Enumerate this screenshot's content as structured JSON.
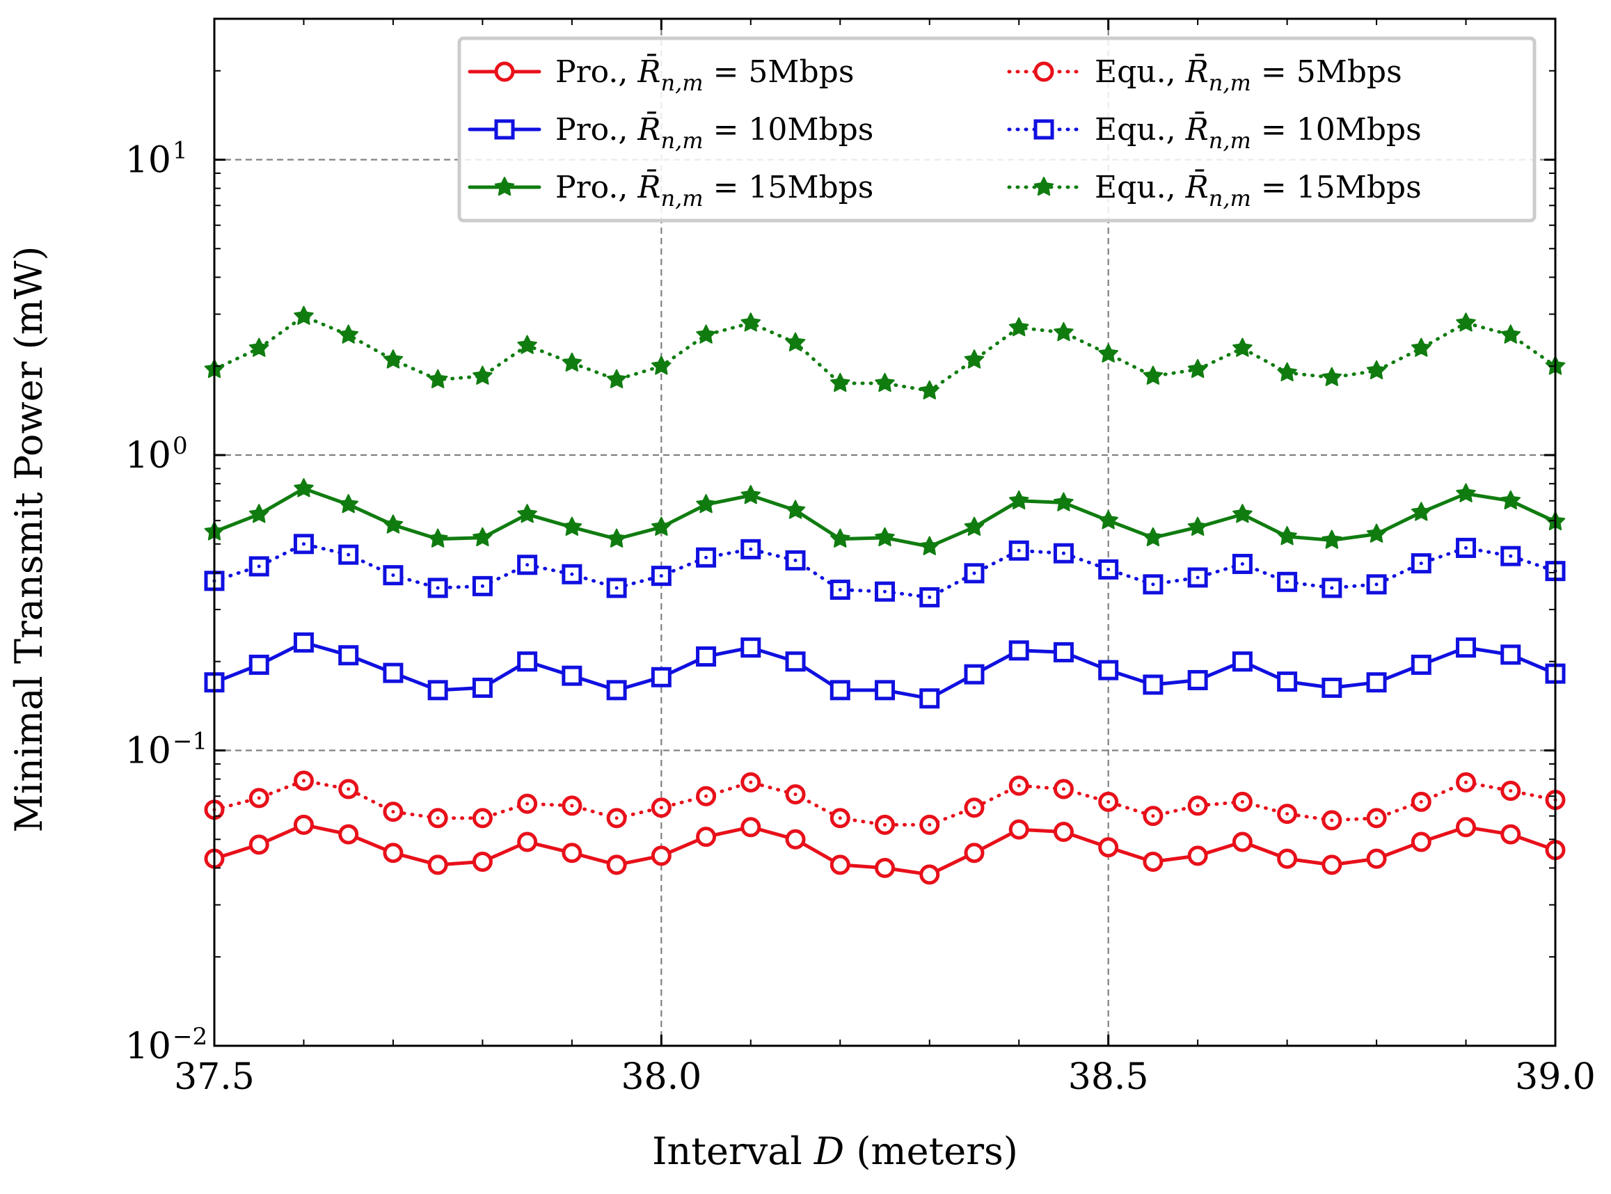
{
  "chart_data": {
    "type": "line",
    "title": "",
    "xlabel_prefix": "Interval ",
    "xlabel_var": "D",
    "xlabel_suffix": " (meters)",
    "ylabel": "Minimal Transmit Power (mW)",
    "yscale": "log",
    "xlim": [
      37.5,
      39.0
    ],
    "ylim": [
      0.01,
      30
    ],
    "grid": true,
    "legend_location": "top-right",
    "x_ticks": [
      37.5,
      38.0,
      38.5,
      39.0
    ],
    "x_tick_labels": [
      "37.5",
      "38.0",
      "38.5",
      "39.0"
    ],
    "y_ticks": [
      {
        "value": 10,
        "base": "10",
        "exp": "1"
      },
      {
        "value": 1,
        "base": "10",
        "exp": "0"
      },
      {
        "value": 0.1,
        "base": "10",
        "exp": "−1"
      },
      {
        "value": 0.01,
        "base": "10",
        "exp": "−2"
      }
    ],
    "x": [
      37.5,
      37.55,
      37.6,
      37.65,
      37.7,
      37.75,
      37.8,
      37.85,
      37.9,
      37.95,
      38.0,
      38.05,
      38.1,
      38.15,
      38.2,
      38.25,
      38.3,
      38.35,
      38.4,
      38.45,
      38.5,
      38.55,
      38.6,
      38.65,
      38.7,
      38.75,
      38.8,
      38.85,
      38.9,
      38.95,
      39.0
    ],
    "series": [
      {
        "name": "Pro., R̄n,m = 5Mbps",
        "label_scheme": "Pro.,",
        "label_rate": "5Mbps",
        "color": "#e8101a",
        "linestyle": "solid",
        "marker": "circle",
        "values": [
          0.043,
          0.048,
          0.056,
          0.052,
          0.045,
          0.041,
          0.042,
          0.049,
          0.045,
          0.041,
          0.044,
          0.051,
          0.055,
          0.05,
          0.041,
          0.04,
          0.038,
          0.045,
          0.054,
          0.053,
          0.047,
          0.042,
          0.044,
          0.049,
          0.043,
          0.041,
          0.043,
          0.049,
          0.055,
          0.052,
          0.046
        ]
      },
      {
        "name": "Pro., R̄n,m = 10Mbps",
        "label_scheme": "Pro.,",
        "label_rate": "10Mbps",
        "color": "#1010e0",
        "linestyle": "solid",
        "marker": "square",
        "values": [
          0.17,
          0.195,
          0.232,
          0.21,
          0.183,
          0.16,
          0.163,
          0.2,
          0.179,
          0.16,
          0.177,
          0.208,
          0.223,
          0.2,
          0.16,
          0.16,
          0.15,
          0.181,
          0.218,
          0.215,
          0.187,
          0.167,
          0.173,
          0.2,
          0.171,
          0.163,
          0.17,
          0.195,
          0.223,
          0.211,
          0.182
        ]
      },
      {
        "name": "Pro., R̄n,m = 15Mbps",
        "label_scheme": "Pro.,",
        "label_rate": "15Mbps",
        "color": "#107c10",
        "linestyle": "solid",
        "marker": "star",
        "values": [
          0.55,
          0.63,
          0.77,
          0.68,
          0.58,
          0.52,
          0.525,
          0.63,
          0.57,
          0.52,
          0.57,
          0.68,
          0.73,
          0.65,
          0.52,
          0.525,
          0.49,
          0.57,
          0.7,
          0.69,
          0.6,
          0.525,
          0.57,
          0.63,
          0.53,
          0.515,
          0.54,
          0.64,
          0.74,
          0.7,
          0.595
        ]
      },
      {
        "name": "Equ., R̄n,m = 5Mbps",
        "label_scheme": "Equ.,",
        "label_rate": "5Mbps",
        "color": "#e8101a",
        "linestyle": "dotted",
        "marker": "circle",
        "values": [
          0.063,
          0.069,
          0.079,
          0.074,
          0.062,
          0.059,
          0.059,
          0.066,
          0.065,
          0.059,
          0.064,
          0.07,
          0.078,
          0.071,
          0.059,
          0.056,
          0.056,
          0.064,
          0.076,
          0.074,
          0.067,
          0.06,
          0.065,
          0.067,
          0.061,
          0.058,
          0.059,
          0.067,
          0.078,
          0.073,
          0.068
        ]
      },
      {
        "name": "Equ., R̄n,m = 10Mbps",
        "label_scheme": "Equ.,",
        "label_rate": "10Mbps",
        "color": "#1010e0",
        "linestyle": "dotted",
        "marker": "square",
        "values": [
          0.375,
          0.42,
          0.5,
          0.46,
          0.392,
          0.355,
          0.36,
          0.425,
          0.395,
          0.355,
          0.39,
          0.45,
          0.48,
          0.44,
          0.35,
          0.345,
          0.33,
          0.398,
          0.475,
          0.465,
          0.41,
          0.365,
          0.385,
          0.428,
          0.372,
          0.355,
          0.365,
          0.43,
          0.485,
          0.455,
          0.405
        ]
      },
      {
        "name": "Equ., R̄n,m = 15Mbps",
        "label_scheme": "Equ.,",
        "label_rate": "15Mbps",
        "color": "#107c10",
        "linestyle": "dotted",
        "marker": "star",
        "values": [
          1.95,
          2.3,
          2.95,
          2.55,
          2.1,
          1.8,
          1.85,
          2.35,
          2.05,
          1.8,
          2.0,
          2.55,
          2.8,
          2.4,
          1.75,
          1.75,
          1.65,
          2.1,
          2.7,
          2.6,
          2.2,
          1.85,
          1.95,
          2.3,
          1.9,
          1.83,
          1.93,
          2.3,
          2.8,
          2.55,
          2.0
        ]
      }
    ]
  }
}
